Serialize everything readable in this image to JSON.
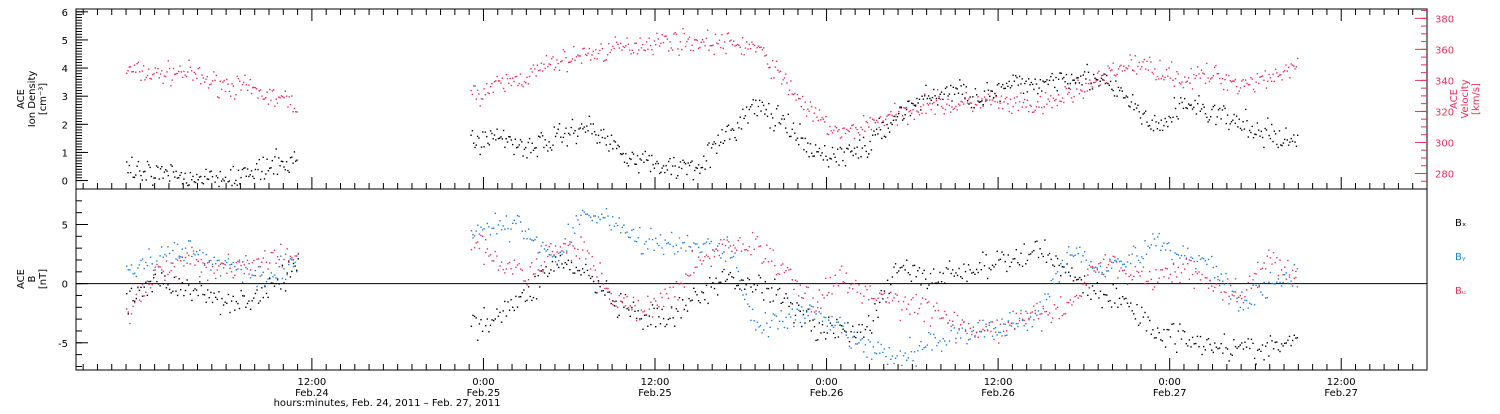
{
  "chart_data": [
    {
      "type": "scatter",
      "panel": "top",
      "ylabel_left": [
        "ACE",
        "Ion Density",
        "[cm⁻³]"
      ],
      "ylabel_right": [
        "ACE",
        "Velocity",
        "[km/s]"
      ],
      "ylim_left": [
        -0.3,
        6.1
      ],
      "ylim_right": [
        270,
        386
      ],
      "yticks_left": [
        "0",
        "1",
        "2",
        "3",
        "4",
        "5",
        "6"
      ],
      "yticks_left_values": [
        0,
        1,
        2,
        3,
        4,
        5,
        6
      ],
      "yticks_right": [
        "280",
        "300",
        "320",
        "340",
        "360",
        "380"
      ],
      "yticks_right_values": [
        280,
        300,
        320,
        340,
        360,
        380
      ],
      "colors": {
        "density": "#000000",
        "velocity": "#e8305a"
      },
      "series": [
        {
          "axis": "left",
          "x": [
            -1,
            1,
            3,
            5,
            7,
            9,
            11,
            13,
            15,
            17,
            19,
            21,
            23,
            25,
            27,
            29,
            31,
            33,
            35,
            37,
            39,
            41,
            43,
            45,
            47,
            49,
            51,
            53,
            55,
            57,
            59,
            61,
            63,
            65,
            67,
            69,
            71,
            73,
            75,
            77,
            79,
            81
          ],
          "y": [
            0.3,
            0.2,
            0.15,
            0.15,
            0.2,
            0.45,
            0.8,
            null,
            null,
            null,
            null,
            null,
            1.4,
            1.6,
            1.2,
            1.5,
            2.0,
            1.3,
            0.7,
            0.5,
            0.6,
            1.6,
            2.7,
            2.0,
            1.0,
            0.9,
            1.3,
            2.4,
            3.0,
            3.2,
            3.0,
            3.4,
            3.5,
            3.8,
            3.6,
            2.9,
            1.8,
            2.8,
            2.4,
            2.0,
            1.6,
            1.4
          ]
        },
        {
          "axis": "right",
          "x": [
            -1,
            1,
            3,
            5,
            7,
            9,
            11,
            13,
            15,
            17,
            19,
            21,
            23,
            25,
            27,
            29,
            31,
            33,
            35,
            37,
            39,
            41,
            43,
            45,
            47,
            49,
            51,
            53,
            55,
            57,
            59,
            61,
            63,
            65,
            67,
            69,
            71,
            73,
            75,
            77,
            79,
            81
          ],
          "y": [
            347,
            344,
            346,
            339,
            336,
            330,
            325,
            null,
            null,
            null,
            null,
            null,
            330,
            337,
            343,
            352,
            357,
            360,
            364,
            366,
            365,
            364,
            362,
            340,
            318,
            305,
            313,
            318,
            326,
            324,
            327,
            324,
            323,
            332,
            340,
            351,
            348,
            341,
            344,
            338,
            343,
            350
          ]
        }
      ]
    },
    {
      "type": "scatter",
      "panel": "bottom",
      "ylabel_left": [
        "ACE",
        "B",
        "[nT]"
      ],
      "ylim": [
        -7.3,
        8.0
      ],
      "yticks": [
        "-5",
        "0",
        "5"
      ],
      "yticks_values": [
        -5,
        0,
        5
      ],
      "zero_line": true,
      "legend_placement": "right",
      "series": [
        {
          "name": "Bₓ",
          "color": "#000000",
          "x": [
            -1,
            1,
            3,
            5,
            7,
            9,
            11,
            13,
            15,
            17,
            19,
            21,
            23,
            25,
            27,
            29,
            31,
            33,
            35,
            37,
            39,
            41,
            43,
            45,
            47,
            49,
            51,
            53,
            55,
            57,
            59,
            61,
            63,
            65,
            67,
            69,
            71,
            73,
            75,
            77,
            79,
            81
          ],
          "y": [
            -1.5,
            0.5,
            -0.5,
            -1.0,
            -1.5,
            -0.5,
            1.5,
            null,
            null,
            null,
            null,
            null,
            -3.5,
            -2.5,
            -1.0,
            2.0,
            1.0,
            -1.5,
            -3.0,
            -3.0,
            -1.0,
            0.5,
            0.0,
            -1.0,
            -3.5,
            -4.0,
            -3.5,
            1.5,
            0.5,
            1.0,
            1.5,
            2.0,
            3.0,
            1.0,
            -1.0,
            -1.5,
            -4.0,
            -4.5,
            -5.0,
            -5.5,
            -5.5,
            -4.5
          ]
        },
        {
          "name": "Bᵧ",
          "color": "#1a7fe0",
          "x": [
            -1,
            1,
            3,
            5,
            7,
            9,
            11,
            13,
            15,
            17,
            19,
            21,
            23,
            25,
            27,
            29,
            31,
            33,
            35,
            37,
            39,
            41,
            43,
            45,
            47,
            49,
            51,
            53,
            55,
            57,
            59,
            61,
            63,
            65,
            67,
            69,
            71,
            73,
            75,
            77,
            79,
            81
          ],
          "y": [
            1.0,
            2.0,
            3.0,
            2.0,
            1.5,
            0.5,
            2.0,
            null,
            null,
            null,
            null,
            null,
            4.5,
            5.0,
            4.5,
            2.0,
            6.0,
            5.5,
            3.5,
            3.5,
            3.0,
            3.5,
            -3.5,
            -3.0,
            -2.5,
            -4.0,
            -5.5,
            -6.5,
            -5.0,
            -4.0,
            -4.0,
            -3.5,
            -2.0,
            3.0,
            1.5,
            2.0,
            3.5,
            2.5,
            1.5,
            -1.5,
            0.0,
            1.0
          ]
        },
        {
          "name": "Bᵤ",
          "color": "#e8305a",
          "x": [
            -1,
            1,
            3,
            5,
            7,
            9,
            11,
            13,
            15,
            17,
            19,
            21,
            23,
            25,
            27,
            29,
            31,
            33,
            35,
            37,
            39,
            41,
            43,
            45,
            47,
            49,
            51,
            53,
            55,
            57,
            59,
            61,
            63,
            65,
            67,
            69,
            71,
            73,
            75,
            77,
            79,
            81
          ],
          "y": [
            -3.0,
            1.0,
            2.0,
            1.5,
            1.5,
            2.0,
            2.5,
            null,
            null,
            null,
            null,
            null,
            3.5,
            2.0,
            0.5,
            3.0,
            3.0,
            -1.0,
            -2.5,
            -1.0,
            2.0,
            3.0,
            3.5,
            1.0,
            -1.5,
            0.5,
            -1.0,
            -1.5,
            -2.0,
            -3.5,
            -4.0,
            -3.5,
            -2.5,
            -2.0,
            2.0,
            1.0,
            0.5,
            1.5,
            0.0,
            -1.0,
            2.0,
            0.5
          ]
        }
      ]
    }
  ],
  "xaxis": {
    "label": "hours:minutes, Feb. 24, 2011 – Feb. 27, 2011",
    "xlim": [
      -4.5,
      90.0
    ],
    "major_ticks": [
      {
        "x": 12,
        "time": "12:00",
        "date": "Feb.24"
      },
      {
        "x": 24,
        "time": "0:00",
        "date": "Feb.25"
      },
      {
        "x": 36,
        "time": "12:00",
        "date": "Feb.25"
      },
      {
        "x": 48,
        "time": "0:00",
        "date": "Feb.26"
      },
      {
        "x": 60,
        "time": "12:00",
        "date": "Feb.26"
      },
      {
        "x": 72,
        "time": "0:00",
        "date": "Feb.27"
      },
      {
        "x": 84,
        "time": "12:00",
        "date": "Feb.27"
      }
    ]
  }
}
